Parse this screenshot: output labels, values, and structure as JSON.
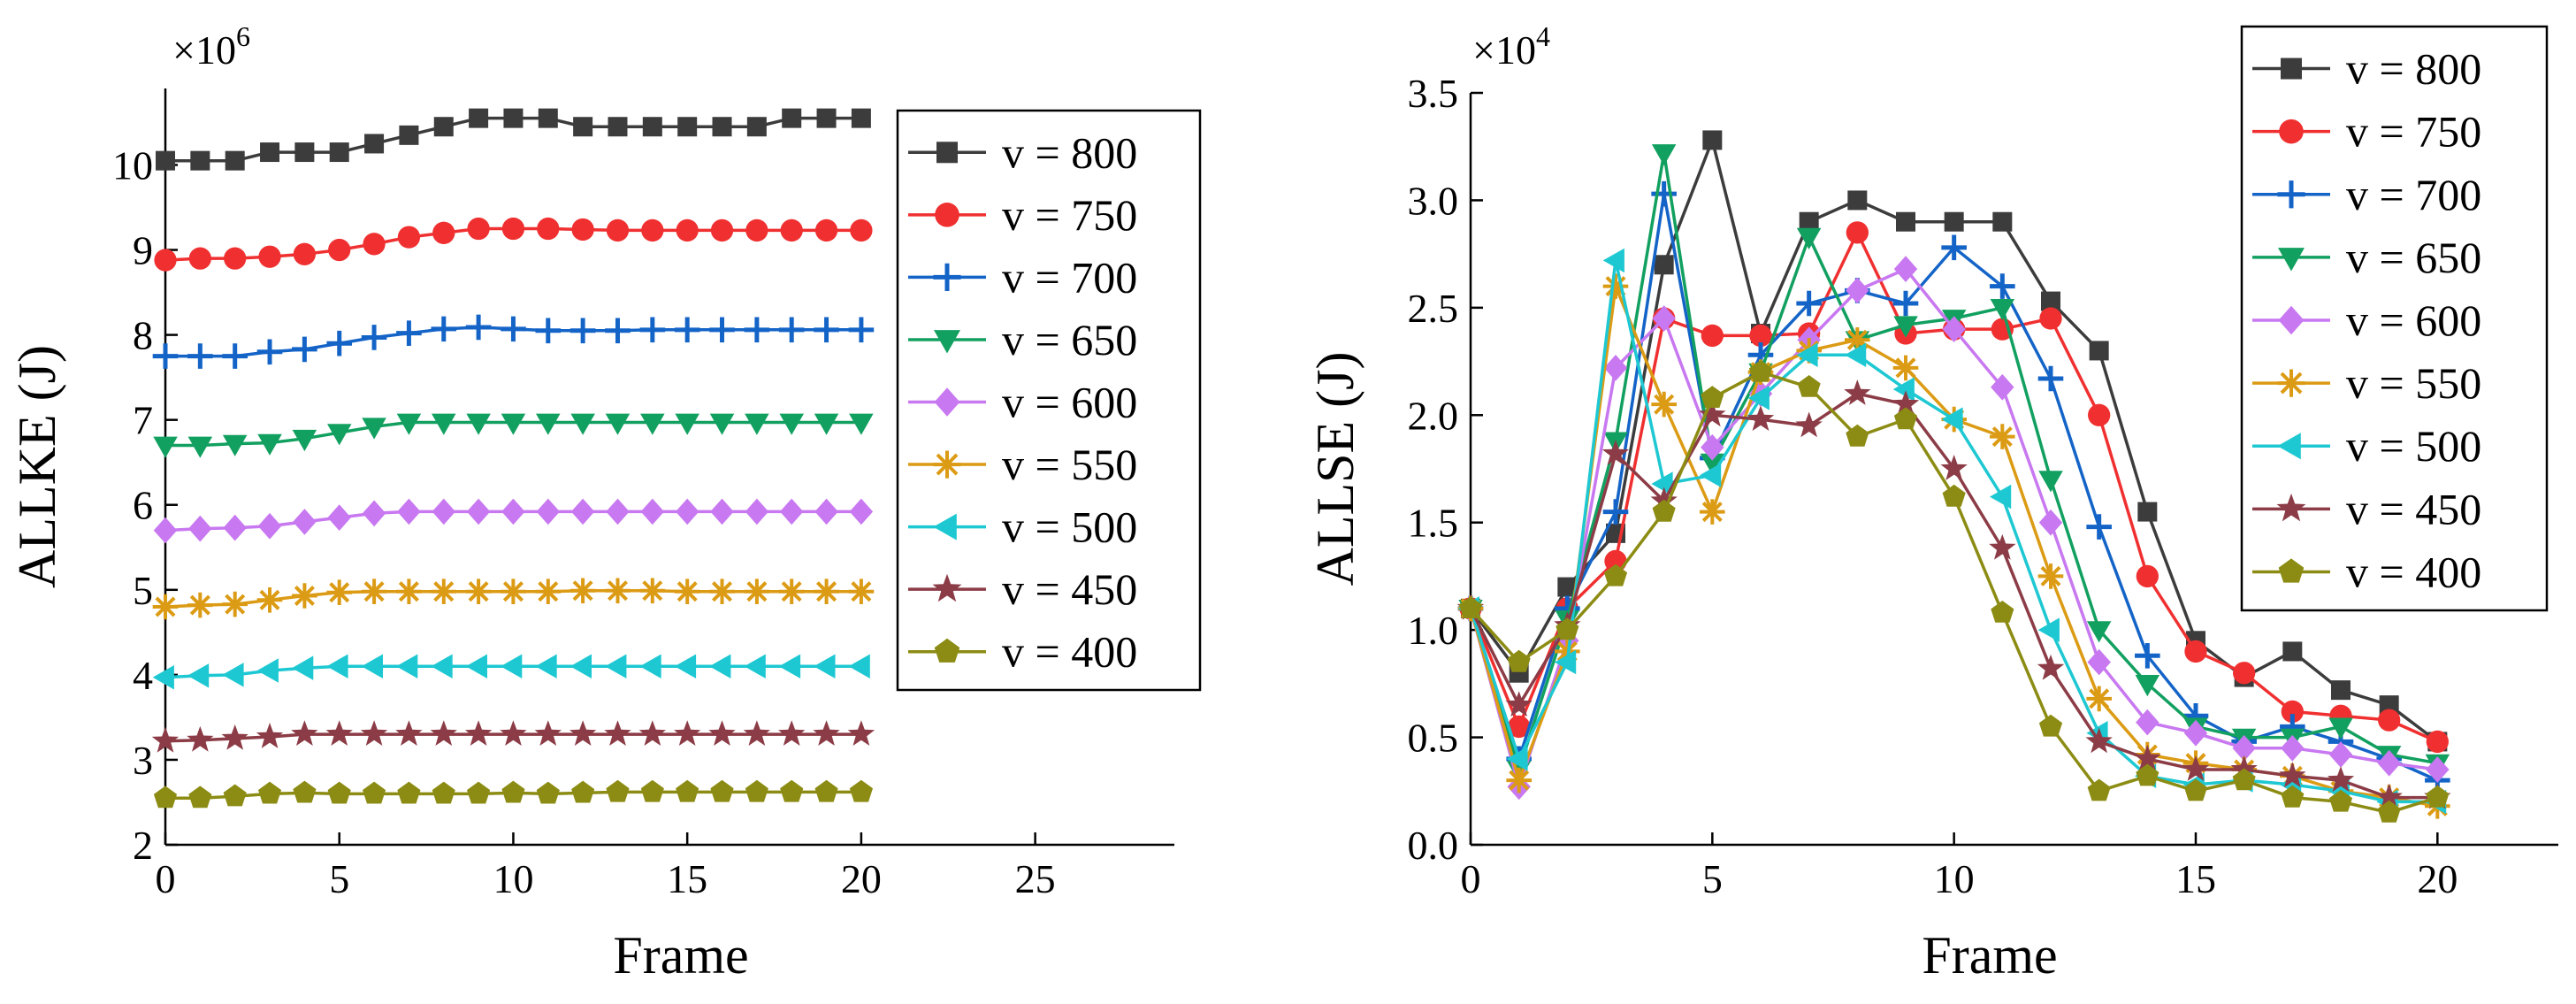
{
  "chart_data": [
    {
      "type": "line",
      "id": "allke",
      "ylabel": "ALLKE (J)",
      "xlabel": "Frame",
      "y_exponent_base": "×10",
      "y_exponent_power": "6",
      "xlim": [
        0,
        29
      ],
      "ylim": [
        2,
        10.9
      ],
      "x_ticks": [
        0,
        5,
        10,
        15,
        20,
        25
      ],
      "y_ticks": [
        2,
        3,
        4,
        5,
        6,
        7,
        8,
        9,
        10
      ],
      "legend_position": "top-right",
      "x": [
        0,
        1,
        2,
        3,
        4,
        5,
        6,
        7,
        8,
        9,
        10,
        11,
        12,
        13,
        14,
        15,
        16,
        17,
        18,
        19,
        20
      ],
      "series": [
        {
          "name": "v = 800",
          "color": "#3c3c3c",
          "marker": "square",
          "values": [
            10.05,
            10.05,
            10.05,
            10.15,
            10.15,
            10.15,
            10.25,
            10.35,
            10.45,
            10.55,
            10.55,
            10.55,
            10.45,
            10.45,
            10.45,
            10.45,
            10.45,
            10.45,
            10.55,
            10.55,
            10.55
          ]
        },
        {
          "name": "v = 750",
          "color": "#f03030",
          "marker": "circle",
          "values": [
            8.88,
            8.9,
            8.9,
            8.92,
            8.95,
            9.0,
            9.07,
            9.15,
            9.2,
            9.25,
            9.25,
            9.25,
            9.24,
            9.23,
            9.23,
            9.23,
            9.23,
            9.23,
            9.23,
            9.23,
            9.23
          ]
        },
        {
          "name": "v = 700",
          "color": "#1464c8",
          "marker": "plus",
          "values": [
            7.75,
            7.75,
            7.75,
            7.8,
            7.83,
            7.9,
            7.97,
            8.02,
            8.07,
            8.09,
            8.07,
            8.05,
            8.05,
            8.05,
            8.06,
            8.06,
            8.06,
            8.06,
            8.06,
            8.06,
            8.06
          ]
        },
        {
          "name": "v = 650",
          "color": "#12a060",
          "marker": "triangle-down",
          "values": [
            6.7,
            6.7,
            6.72,
            6.73,
            6.78,
            6.85,
            6.92,
            6.97,
            6.97,
            6.97,
            6.97,
            6.97,
            6.97,
            6.97,
            6.97,
            6.97,
            6.97,
            6.97,
            6.97,
            6.97,
            6.97
          ]
        },
        {
          "name": "v = 600",
          "color": "#c878f0",
          "marker": "diamond",
          "values": [
            5.7,
            5.72,
            5.73,
            5.75,
            5.8,
            5.85,
            5.9,
            5.92,
            5.92,
            5.92,
            5.92,
            5.92,
            5.92,
            5.92,
            5.92,
            5.92,
            5.92,
            5.92,
            5.92,
            5.92,
            5.92
          ]
        },
        {
          "name": "v = 550",
          "color": "#dc9b14",
          "marker": "asterisk",
          "values": [
            4.8,
            4.82,
            4.83,
            4.88,
            4.93,
            4.97,
            4.98,
            4.98,
            4.98,
            4.98,
            4.98,
            4.98,
            4.99,
            4.99,
            4.99,
            4.98,
            4.98,
            4.98,
            4.98,
            4.98,
            4.98
          ]
        },
        {
          "name": "v = 500",
          "color": "#1ec8d2",
          "marker": "triangle-left",
          "values": [
            3.97,
            3.99,
            4.0,
            4.05,
            4.08,
            4.1,
            4.1,
            4.1,
            4.1,
            4.1,
            4.1,
            4.1,
            4.1,
            4.1,
            4.1,
            4.1,
            4.1,
            4.1,
            4.1,
            4.1,
            4.1
          ]
        },
        {
          "name": "v = 450",
          "color": "#8c3c46",
          "marker": "star",
          "values": [
            3.22,
            3.23,
            3.25,
            3.27,
            3.3,
            3.3,
            3.3,
            3.3,
            3.3,
            3.3,
            3.3,
            3.3,
            3.3,
            3.3,
            3.3,
            3.3,
            3.3,
            3.3,
            3.3,
            3.3,
            3.3
          ]
        },
        {
          "name": "v = 400",
          "color": "#8c8c14",
          "marker": "pentagon",
          "values": [
            2.55,
            2.55,
            2.57,
            2.6,
            2.61,
            2.6,
            2.6,
            2.6,
            2.6,
            2.6,
            2.61,
            2.6,
            2.61,
            2.62,
            2.62,
            2.62,
            2.62,
            2.62,
            2.62,
            2.62,
            2.62
          ]
        }
      ]
    },
    {
      "type": "line",
      "id": "allse",
      "ylabel": "ALLSE (J)",
      "xlabel": "Frame",
      "y_exponent_base": "×10",
      "y_exponent_power": "4",
      "xlim": [
        0,
        22.5
      ],
      "ylim": [
        0,
        3.5
      ],
      "x_ticks": [
        0,
        5,
        10,
        15,
        20
      ],
      "y_ticks": [
        0.0,
        0.5,
        1.0,
        1.5,
        2.0,
        2.5,
        3.0,
        3.5
      ],
      "y_tick_labels": [
        "0.0",
        "0.5",
        "1.0",
        "1.5",
        "2.0",
        "2.5",
        "3.0",
        "3.5"
      ],
      "legend_position": "top-right",
      "x": [
        0,
        1,
        2,
        3,
        4,
        5,
        6,
        7,
        8,
        9,
        10,
        11,
        12,
        13,
        14,
        15,
        16,
        17,
        18,
        19,
        20
      ],
      "series": [
        {
          "name": "v = 800",
          "color": "#3c3c3c",
          "marker": "square",
          "values": [
            1.1,
            0.8,
            1.2,
            1.45,
            2.7,
            3.28,
            2.38,
            2.9,
            3.0,
            2.9,
            2.9,
            2.9,
            2.53,
            2.3,
            1.55,
            0.95,
            0.78,
            0.9,
            0.72,
            0.65,
            0.48
          ]
        },
        {
          "name": "v = 750",
          "color": "#f03030",
          "marker": "circle",
          "values": [
            1.1,
            0.55,
            1.1,
            1.32,
            2.45,
            2.37,
            2.37,
            2.38,
            2.85,
            2.38,
            2.4,
            2.4,
            2.45,
            2.0,
            1.25,
            0.9,
            0.8,
            0.62,
            0.6,
            0.58,
            0.48
          ]
        },
        {
          "name": "v = 700",
          "color": "#1464c8",
          "marker": "plus",
          "values": [
            1.1,
            0.4,
            1.1,
            1.55,
            3.03,
            1.8,
            2.28,
            2.52,
            2.58,
            2.52,
            2.78,
            2.6,
            2.17,
            1.48,
            0.88,
            0.6,
            0.48,
            0.55,
            0.48,
            0.4,
            0.3
          ]
        },
        {
          "name": "v = 650",
          "color": "#12a060",
          "marker": "triangle-down",
          "values": [
            1.1,
            0.35,
            1.05,
            1.88,
            3.22,
            1.78,
            2.2,
            2.83,
            2.35,
            2.42,
            2.45,
            2.5,
            1.7,
            1.0,
            0.75,
            0.55,
            0.5,
            0.5,
            0.55,
            0.42,
            0.38
          ]
        },
        {
          "name": "v = 600",
          "color": "#c878f0",
          "marker": "diamond",
          "values": [
            1.1,
            0.27,
            0.95,
            2.22,
            2.45,
            1.85,
            2.1,
            2.35,
            2.58,
            2.68,
            2.4,
            2.13,
            1.5,
            0.85,
            0.57,
            0.52,
            0.45,
            0.45,
            0.42,
            0.38,
            0.35
          ]
        },
        {
          "name": "v = 550",
          "color": "#dc9b14",
          "marker": "asterisk",
          "values": [
            1.1,
            0.3,
            0.9,
            2.6,
            2.05,
            1.55,
            2.2,
            2.3,
            2.35,
            2.22,
            1.98,
            1.9,
            1.25,
            0.68,
            0.42,
            0.38,
            0.35,
            0.32,
            0.25,
            0.22,
            0.18
          ]
        },
        {
          "name": "v = 500",
          "color": "#1ec8d2",
          "marker": "triangle-left",
          "values": [
            1.1,
            0.4,
            0.85,
            2.72,
            1.68,
            1.72,
            2.08,
            2.28,
            2.28,
            2.12,
            1.98,
            1.62,
            1.0,
            0.52,
            0.32,
            0.28,
            0.3,
            0.28,
            0.25,
            0.2,
            0.2
          ]
        },
        {
          "name": "v = 450",
          "color": "#8c3c46",
          "marker": "star",
          "values": [
            1.1,
            0.65,
            1.02,
            1.82,
            1.6,
            2.0,
            1.98,
            1.95,
            2.1,
            2.05,
            1.75,
            1.38,
            0.82,
            0.48,
            0.4,
            0.35,
            0.35,
            0.32,
            0.3,
            0.22,
            0.22
          ]
        },
        {
          "name": "v = 400",
          "color": "#8c8c14",
          "marker": "pentagon",
          "values": [
            1.1,
            0.85,
            1.0,
            1.25,
            1.55,
            2.08,
            2.2,
            2.13,
            1.9,
            1.98,
            1.62,
            1.08,
            0.55,
            0.25,
            0.32,
            0.25,
            0.3,
            0.22,
            0.2,
            0.15,
            0.22
          ]
        }
      ]
    }
  ]
}
